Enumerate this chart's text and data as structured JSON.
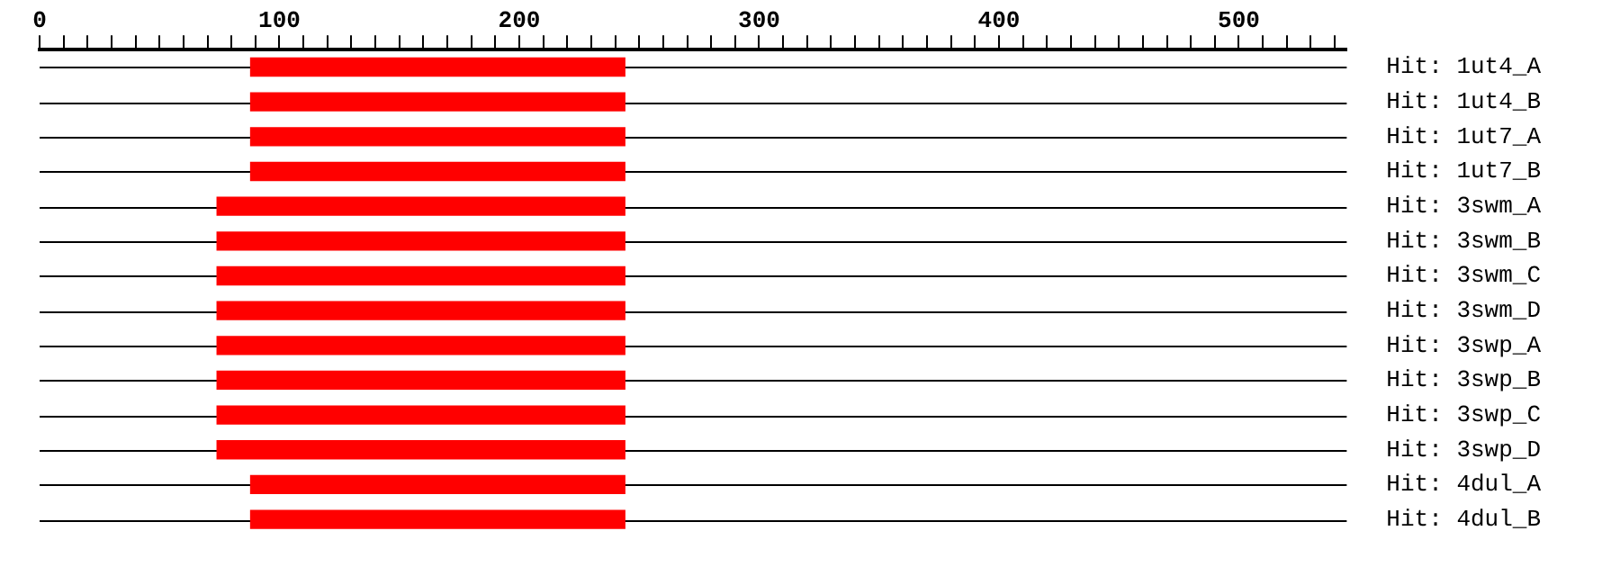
{
  "chart_data": {
    "type": "bar",
    "orientation": "horizontal",
    "categories": [
      "Hit: 1ut4_A",
      "Hit: 1ut4_B",
      "Hit: 1ut7_A",
      "Hit: 1ut7_B",
      "Hit: 3swm_A",
      "Hit: 3swm_B",
      "Hit: 3swm_C",
      "Hit: 3swm_D",
      "Hit: 3swp_A",
      "Hit: 3swp_B",
      "Hit: 3swp_C",
      "Hit: 3swp_D",
      "Hit: 4dul_A",
      "Hit: 4dul_B"
    ],
    "base": [
      88,
      88,
      88,
      88,
      74,
      74,
      74,
      74,
      74,
      74,
      74,
      74,
      88,
      88
    ],
    "values": [
      156,
      156,
      156,
      156,
      170,
      170,
      170,
      170,
      170,
      170,
      170,
      170,
      156,
      156
    ],
    "color": "#ff0000",
    "xlim": [
      0,
      545
    ],
    "xticks": [
      0,
      {
        "value": 10,
        "label": null
      },
      {
        "value": 20,
        "label": null
      },
      {
        "value": 30,
        "label": null
      },
      {
        "value": 40,
        "label": null
      },
      {
        "value": 50,
        "label": null
      },
      {
        "value": 60,
        "label": null
      },
      {
        "value": 70,
        "label": null
      },
      {
        "value": 80,
        "label": null
      },
      {
        "value": 90,
        "label": null
      },
      100,
      {
        "value": 110,
        "label": null
      },
      {
        "value": 120,
        "label": null
      },
      {
        "value": 130,
        "label": null
      },
      {
        "value": 140,
        "label": null
      },
      {
        "value": 150,
        "label": null
      },
      {
        "value": 160,
        "label": null
      },
      {
        "value": 170,
        "label": null
      },
      {
        "value": 180,
        "label": null
      },
      {
        "value": 190,
        "label": null
      },
      200,
      {
        "value": 210,
        "label": null
      },
      {
        "value": 220,
        "label": null
      },
      {
        "value": 230,
        "label": null
      },
      {
        "value": 240,
        "label": null
      },
      {
        "value": 250,
        "label": null
      },
      {
        "value": 260,
        "label": null
      },
      {
        "value": 270,
        "label": null
      },
      {
        "value": 280,
        "label": null
      },
      {
        "value": 290,
        "label": null
      },
      300,
      {
        "value": 310,
        "label": null
      },
      {
        "value": 320,
        "label": null
      },
      {
        "value": 330,
        "label": null
      },
      {
        "value": 340,
        "label": null
      },
      {
        "value": 350,
        "label": null
      },
      {
        "value": 360,
        "label": null
      },
      {
        "value": 370,
        "label": null
      },
      {
        "value": 380,
        "label": null
      },
      {
        "value": 390,
        "label": null
      },
      400,
      {
        "value": 410,
        "label": null
      },
      {
        "value": 420,
        "label": null
      },
      {
        "value": 430,
        "label": null
      },
      {
        "value": 440,
        "label": null
      },
      {
        "value": 450,
        "label": null
      },
      {
        "value": 460,
        "label": null
      },
      {
        "value": 470,
        "label": null
      },
      {
        "value": 480,
        "label": null
      },
      {
        "value": 490,
        "label": null
      },
      500,
      {
        "value": 510,
        "label": null
      },
      {
        "value": 520,
        "label": null
      },
      {
        "value": 530,
        "label": null
      },
      {
        "value": 540,
        "label": null
      }
    ],
    "grid": false,
    "legend": false
  }
}
